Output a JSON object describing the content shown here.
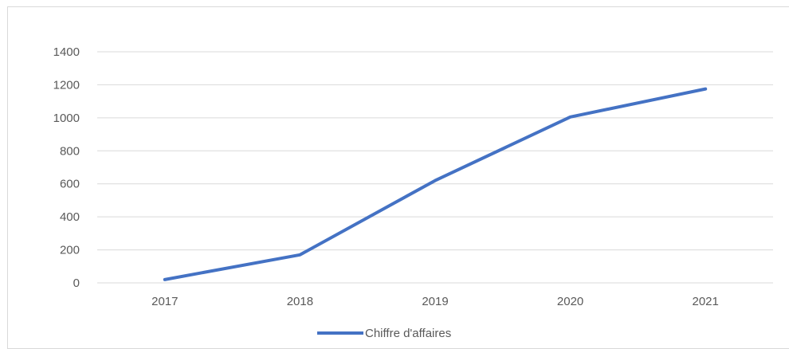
{
  "chart_data": {
    "type": "line",
    "title": "",
    "xlabel": "",
    "ylabel": "",
    "categories": [
      "2017",
      "2018",
      "2019",
      "2020",
      "2021"
    ],
    "series": [
      {
        "name": "Chiffre d'affaires",
        "values": [
          20,
          170,
          620,
          1005,
          1175
        ],
        "color": "#4472c4"
      }
    ],
    "ylim": [
      0,
      1400
    ],
    "yticks": [
      0,
      200,
      400,
      600,
      800,
      1000,
      1200,
      1400
    ],
    "grid": true,
    "legend": "bottom-center"
  }
}
